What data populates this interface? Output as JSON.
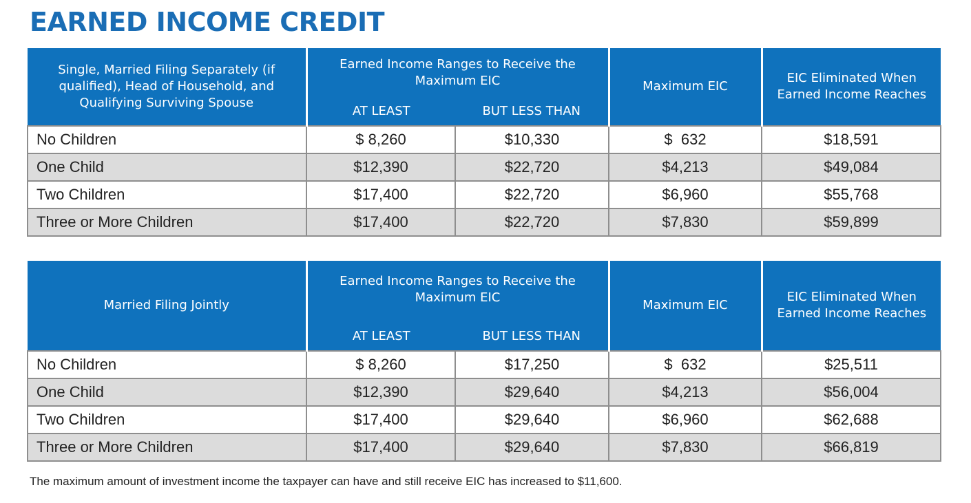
{
  "title": "EARNED INCOME CREDIT",
  "tables": [
    {
      "header": {
        "filing_status": "Single, Married Filing Separately (if qualified), Head of Household, and Qualifying Surviving Spouse",
        "range_group": "Earned Income Ranges to Receive the Maximum EIC",
        "at_least": "AT LEAST",
        "but_less_than": "BUT LESS THAN",
        "max_eic": "Maximum EIC",
        "eliminated": "EIC Eliminated When Earned Income Reaches"
      },
      "rows": [
        {
          "label": "No Children",
          "at_least": "$ 8,260",
          "less_than": "$10,330",
          "max": "$  632",
          "eliminated": "$18,591"
        },
        {
          "label": "One Child",
          "at_least": "$12,390",
          "less_than": "$22,720",
          "max": "$4,213",
          "eliminated": "$49,084"
        },
        {
          "label": "Two Children",
          "at_least": "$17,400",
          "less_than": "$22,720",
          "max": "$6,960",
          "eliminated": "$55,768"
        },
        {
          "label": "Three or More Children",
          "at_least": "$17,400",
          "less_than": "$22,720",
          "max": "$7,830",
          "eliminated": "$59,899"
        }
      ]
    },
    {
      "header": {
        "filing_status": "Married Filing Jointly",
        "range_group": "Earned Income Ranges to Receive the Maximum EIC",
        "at_least": "AT LEAST",
        "but_less_than": "BUT LESS THAN",
        "max_eic": "Maximum EIC",
        "eliminated": "EIC Eliminated When Earned Income Reaches"
      },
      "rows": [
        {
          "label": "No Children",
          "at_least": "$ 8,260",
          "less_than": "$17,250",
          "max": "$  632",
          "eliminated": "$25,511"
        },
        {
          "label": "One Child",
          "at_least": "$12,390",
          "less_than": "$29,640",
          "max": "$4,213",
          "eliminated": "$56,004"
        },
        {
          "label": "Two Children",
          "at_least": "$17,400",
          "less_than": "$29,640",
          "max": "$6,960",
          "eliminated": "$62,688"
        },
        {
          "label": "Three or More Children",
          "at_least": "$17,400",
          "less_than": "$29,640",
          "max": "$7,830",
          "eliminated": "$66,819"
        }
      ]
    }
  ],
  "footnote": "The maximum amount of investment income the taxpayer can have and still receive EIC has increased to $11,600.",
  "colors": {
    "accent": "#0f72bd",
    "title": "#1a6db5",
    "row_alt": "#dcdcdc"
  }
}
